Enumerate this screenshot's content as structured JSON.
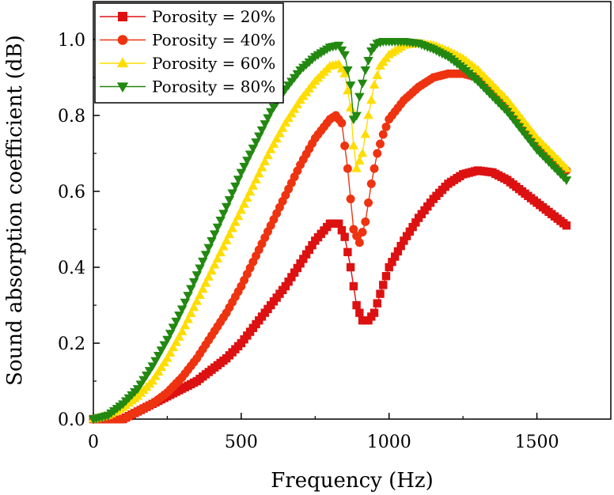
{
  "chart_data": {
    "type": "scatter",
    "title": "",
    "xlabel": "Frequency (Hz)",
    "ylabel": "Sound absorption coefficient (dB)",
    "xlim": [
      0,
      1750
    ],
    "ylim": [
      0,
      1.1
    ],
    "xticks": [
      0,
      500,
      1000,
      1500
    ],
    "xtick_labels": [
      "0",
      "500",
      "1000",
      "1500"
    ],
    "yticks": [
      0.0,
      0.2,
      0.4,
      0.6,
      0.8,
      1.0
    ],
    "ytick_labels": [
      "0.0",
      "0.2",
      "0.4",
      "0.6",
      "0.8",
      "1.0"
    ],
    "grid": false,
    "legend_position": "top-left",
    "series": [
      {
        "name": "Porosity = 20%",
        "color": "#dd1111",
        "marker": "square",
        "x": [
          0,
          100,
          150,
          200,
          250,
          300,
          350,
          400,
          450,
          500,
          550,
          600,
          650,
          700,
          750,
          800,
          830,
          850,
          870,
          890,
          910,
          930,
          950,
          970,
          1000,
          1050,
          1100,
          1150,
          1200,
          1250,
          1300,
          1350,
          1400,
          1450,
          1500,
          1550,
          1600
        ],
        "y": [
          0.0,
          0.0,
          0.02,
          0.04,
          0.06,
          0.08,
          0.1,
          0.13,
          0.16,
          0.2,
          0.25,
          0.3,
          0.35,
          0.41,
          0.47,
          0.515,
          0.515,
          0.48,
          0.4,
          0.3,
          0.26,
          0.26,
          0.28,
          0.33,
          0.4,
          0.47,
          0.53,
          0.58,
          0.62,
          0.645,
          0.655,
          0.65,
          0.63,
          0.6,
          0.57,
          0.54,
          0.51
        ]
      },
      {
        "name": "Porosity = 40%",
        "color": "#ee3311",
        "marker": "circle",
        "x": [
          0,
          100,
          150,
          200,
          250,
          300,
          350,
          400,
          450,
          500,
          550,
          600,
          650,
          700,
          750,
          800,
          820,
          840,
          860,
          880,
          900,
          920,
          940,
          960,
          980,
          1000,
          1050,
          1100,
          1150,
          1200,
          1250,
          1300,
          1350,
          1400,
          1450,
          1500,
          1550,
          1600
        ],
        "y": [
          0.0,
          0.0,
          0.02,
          0.04,
          0.07,
          0.11,
          0.16,
          0.22,
          0.28,
          0.35,
          0.43,
          0.51,
          0.59,
          0.67,
          0.74,
          0.79,
          0.8,
          0.78,
          0.66,
          0.5,
          0.465,
          0.52,
          0.62,
          0.7,
          0.75,
          0.79,
          0.84,
          0.875,
          0.9,
          0.91,
          0.91,
          0.9,
          0.87,
          0.83,
          0.78,
          0.73,
          0.69,
          0.655
        ]
      },
      {
        "name": "Porosity = 60%",
        "color": "#ffdd00",
        "marker": "triangle-up",
        "x": [
          0,
          50,
          100,
          150,
          200,
          250,
          300,
          350,
          400,
          450,
          500,
          550,
          600,
          650,
          700,
          750,
          800,
          830,
          850,
          870,
          880,
          890,
          910,
          930,
          950,
          970,
          1000,
          1050,
          1100,
          1150,
          1200,
          1250,
          1300,
          1350,
          1400,
          1450,
          1500,
          1550,
          1600
        ],
        "y": [
          0.0,
          0.01,
          0.03,
          0.06,
          0.1,
          0.16,
          0.23,
          0.31,
          0.39,
          0.47,
          0.55,
          0.63,
          0.71,
          0.78,
          0.84,
          0.89,
          0.93,
          0.935,
          0.91,
          0.82,
          0.72,
          0.66,
          0.7,
          0.8,
          0.88,
          0.93,
          0.96,
          0.985,
          0.99,
          0.985,
          0.97,
          0.95,
          0.92,
          0.88,
          0.84,
          0.79,
          0.74,
          0.7,
          0.66
        ]
      },
      {
        "name": "Porosity = 80%",
        "color": "#228811",
        "marker": "triangle-down",
        "x": [
          0,
          50,
          100,
          150,
          200,
          250,
          300,
          350,
          400,
          450,
          500,
          550,
          600,
          650,
          700,
          750,
          800,
          830,
          850,
          870,
          880,
          890,
          900,
          920,
          940,
          960,
          980,
          1000,
          1050,
          1100,
          1150,
          1200,
          1250,
          1300,
          1350,
          1400,
          1450,
          1500,
          1550,
          1600
        ],
        "y": [
          0.0,
          0.01,
          0.04,
          0.08,
          0.14,
          0.21,
          0.29,
          0.38,
          0.47,
          0.56,
          0.65,
          0.73,
          0.81,
          0.87,
          0.92,
          0.955,
          0.98,
          0.985,
          0.96,
          0.88,
          0.79,
          0.8,
          0.85,
          0.92,
          0.97,
          0.99,
          0.995,
          0.995,
          0.995,
          0.99,
          0.975,
          0.955,
          0.925,
          0.89,
          0.85,
          0.81,
          0.76,
          0.71,
          0.67,
          0.63
        ]
      }
    ]
  }
}
